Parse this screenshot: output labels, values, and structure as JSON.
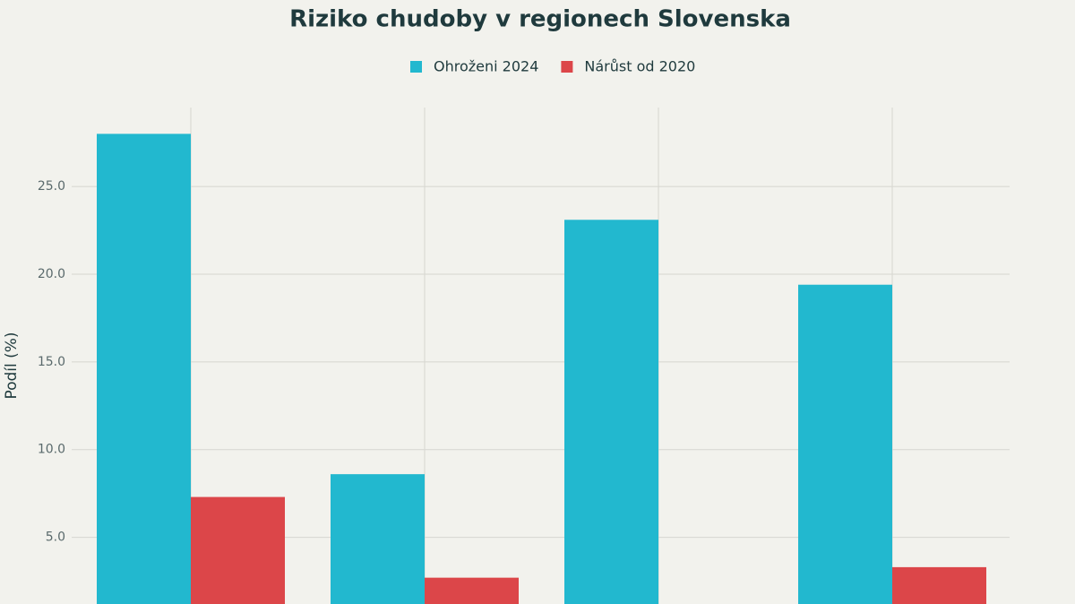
{
  "chart_data": {
    "type": "bar",
    "title": "Riziko chudoby v regionech Slovenska",
    "y_label": "Podíl (%)",
    "categories": [
      null,
      null,
      null,
      null
    ],
    "series": [
      {
        "name": "Ohroženi 2024",
        "color": "#22b8cf",
        "values": [
          28.0,
          8.6,
          23.1,
          19.4
        ]
      },
      {
        "name": "Nárůst od 2020",
        "color": "#dc4649",
        "values": [
          7.3,
          2.7,
          null,
          3.3
        ]
      }
    ],
    "ylim": [
      1.2,
      29.5
    ],
    "yticks": [
      {
        "value": 5,
        "label": "5.0"
      },
      {
        "value": 10,
        "label": "10.0"
      },
      {
        "value": 15,
        "label": "15.0"
      },
      {
        "value": 20,
        "label": "20.0"
      },
      {
        "value": 25,
        "label": "25.0"
      }
    ],
    "grid": true
  }
}
